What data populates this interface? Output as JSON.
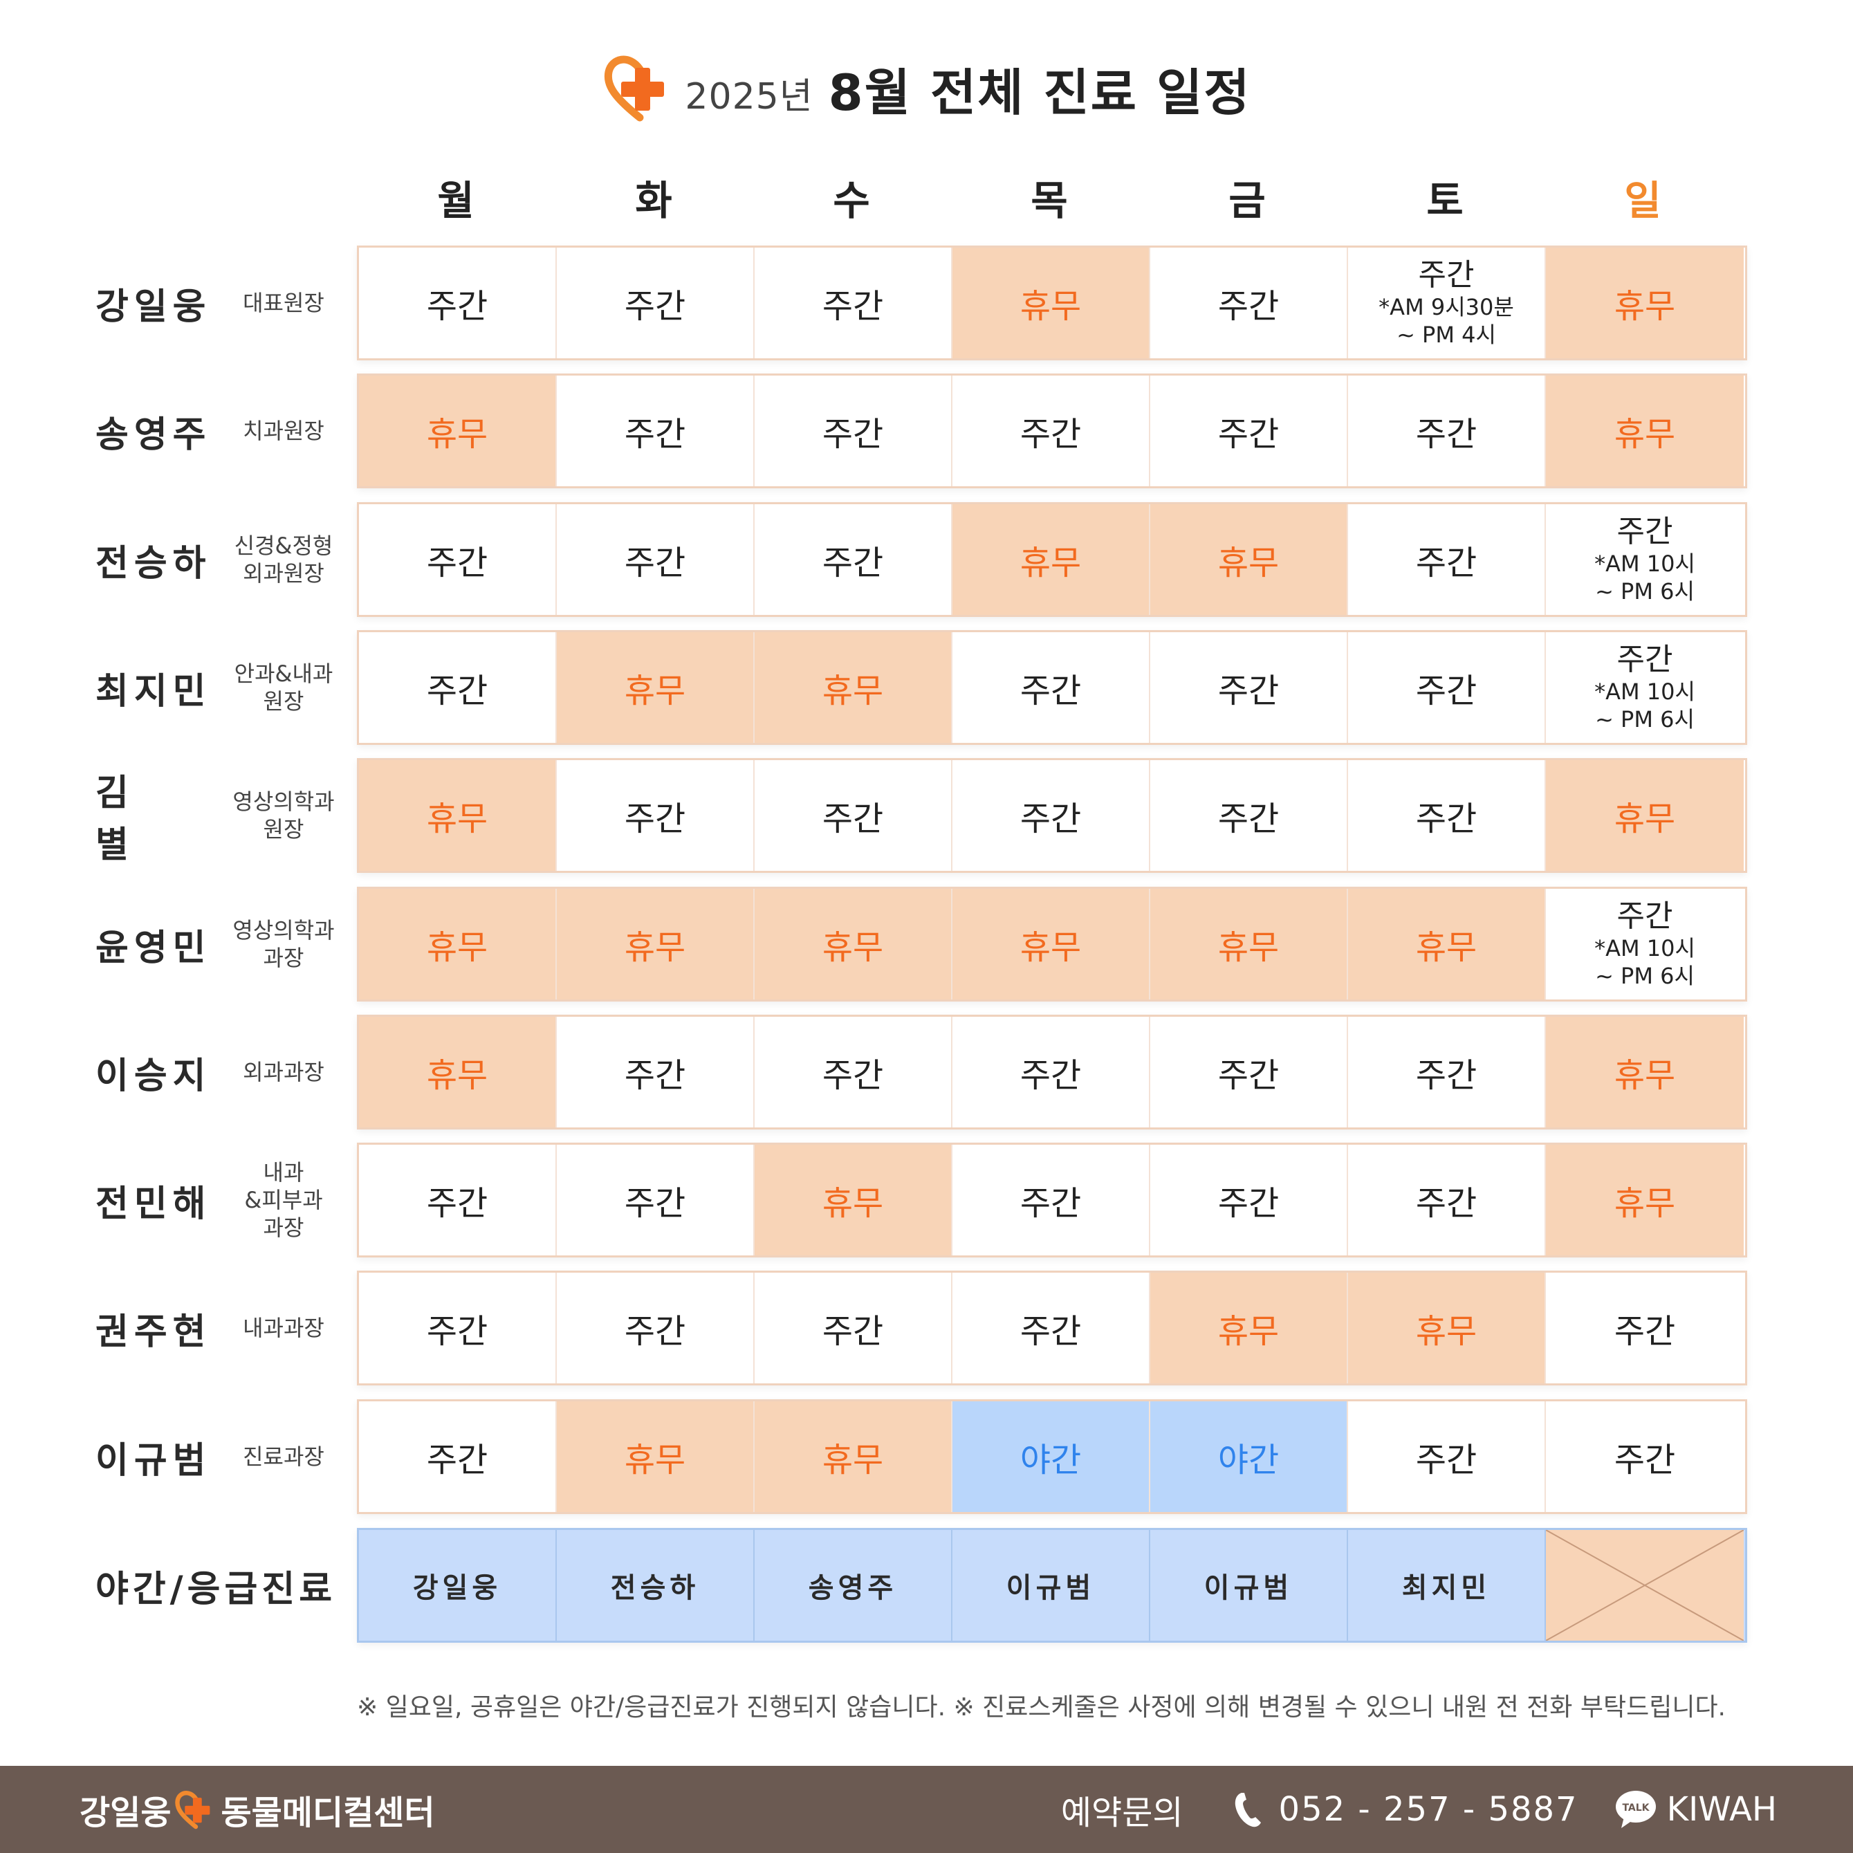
{
  "title": {
    "year": "2025년",
    "main": "8월 전체 진료 일정"
  },
  "days": [
    "월",
    "화",
    "수",
    "목",
    "금",
    "토",
    "일"
  ],
  "doctors": [
    {
      "name": "강일웅",
      "title": "대표원장",
      "cells": [
        {
          "status": "day",
          "text": "주간"
        },
        {
          "status": "day",
          "text": "주간"
        },
        {
          "status": "day",
          "text": "주간"
        },
        {
          "status": "off",
          "text": "휴무"
        },
        {
          "status": "day",
          "text": "주간"
        },
        {
          "status": "day",
          "text": "주간",
          "note1": "*AM 9시30분",
          "note2": "~ PM 4시"
        },
        {
          "status": "off",
          "text": "휴무"
        }
      ]
    },
    {
      "name": "송영주",
      "title": "치과원장",
      "cells": [
        {
          "status": "off",
          "text": "휴무"
        },
        {
          "status": "day",
          "text": "주간"
        },
        {
          "status": "day",
          "text": "주간"
        },
        {
          "status": "day",
          "text": "주간"
        },
        {
          "status": "day",
          "text": "주간"
        },
        {
          "status": "day",
          "text": "주간"
        },
        {
          "status": "off",
          "text": "휴무"
        }
      ]
    },
    {
      "name": "전승하",
      "title": "신경&정형\n외과원장",
      "cells": [
        {
          "status": "day",
          "text": "주간"
        },
        {
          "status": "day",
          "text": "주간"
        },
        {
          "status": "day",
          "text": "주간"
        },
        {
          "status": "off",
          "text": "휴무"
        },
        {
          "status": "off",
          "text": "휴무"
        },
        {
          "status": "day",
          "text": "주간"
        },
        {
          "status": "day",
          "text": "주간",
          "note1": "*AM 10시",
          "note2": "~ PM 6시"
        }
      ]
    },
    {
      "name": "최지민",
      "title": "안과&내과\n원장",
      "cells": [
        {
          "status": "day",
          "text": "주간"
        },
        {
          "status": "off",
          "text": "휴무"
        },
        {
          "status": "off",
          "text": "휴무"
        },
        {
          "status": "day",
          "text": "주간"
        },
        {
          "status": "day",
          "text": "주간"
        },
        {
          "status": "day",
          "text": "주간"
        },
        {
          "status": "day",
          "text": "주간",
          "note1": "*AM 10시",
          "note2": "~ PM 6시"
        }
      ]
    },
    {
      "name": "김별",
      "title": "영상의학과\n원장",
      "cells": [
        {
          "status": "off",
          "text": "휴무"
        },
        {
          "status": "day",
          "text": "주간"
        },
        {
          "status": "day",
          "text": "주간"
        },
        {
          "status": "day",
          "text": "주간"
        },
        {
          "status": "day",
          "text": "주간"
        },
        {
          "status": "day",
          "text": "주간"
        },
        {
          "status": "off",
          "text": "휴무"
        }
      ]
    },
    {
      "name": "윤영민",
      "title": "영상의학과\n과장",
      "cells": [
        {
          "status": "off",
          "text": "휴무"
        },
        {
          "status": "off",
          "text": "휴무"
        },
        {
          "status": "off",
          "text": "휴무"
        },
        {
          "status": "off",
          "text": "휴무"
        },
        {
          "status": "off",
          "text": "휴무"
        },
        {
          "status": "off",
          "text": "휴무"
        },
        {
          "status": "day",
          "text": "주간",
          "note1": "*AM 10시",
          "note2": "~ PM 6시"
        }
      ]
    },
    {
      "name": "이승지",
      "title": "외과과장",
      "cells": [
        {
          "status": "off",
          "text": "휴무"
        },
        {
          "status": "day",
          "text": "주간"
        },
        {
          "status": "day",
          "text": "주간"
        },
        {
          "status": "day",
          "text": "주간"
        },
        {
          "status": "day",
          "text": "주간"
        },
        {
          "status": "day",
          "text": "주간"
        },
        {
          "status": "off",
          "text": "휴무"
        }
      ]
    },
    {
      "name": "전민해",
      "title": "내과\n&피부과\n과장",
      "cells": [
        {
          "status": "day",
          "text": "주간"
        },
        {
          "status": "day",
          "text": "주간"
        },
        {
          "status": "off",
          "text": "휴무"
        },
        {
          "status": "day",
          "text": "주간"
        },
        {
          "status": "day",
          "text": "주간"
        },
        {
          "status": "day",
          "text": "주간"
        },
        {
          "status": "off",
          "text": "휴무"
        }
      ]
    },
    {
      "name": "권주현",
      "title": "내과과장",
      "cells": [
        {
          "status": "day",
          "text": "주간"
        },
        {
          "status": "day",
          "text": "주간"
        },
        {
          "status": "day",
          "text": "주간"
        },
        {
          "status": "day",
          "text": "주간"
        },
        {
          "status": "off",
          "text": "휴무"
        },
        {
          "status": "off",
          "text": "휴무"
        },
        {
          "status": "day",
          "text": "주간"
        }
      ]
    },
    {
      "name": "이규범",
      "title": "진료과장",
      "cells": [
        {
          "status": "day",
          "text": "주간"
        },
        {
          "status": "off",
          "text": "휴무"
        },
        {
          "status": "off",
          "text": "휴무"
        },
        {
          "status": "night",
          "text": "야간"
        },
        {
          "status": "night",
          "text": "야간"
        },
        {
          "status": "day",
          "text": "주간"
        },
        {
          "status": "day",
          "text": "주간"
        }
      ]
    }
  ],
  "emergency": {
    "label": "야간/응급진료",
    "cells": [
      "강일웅",
      "전승하",
      "송영주",
      "이규범",
      "이규범",
      "최지민"
    ],
    "sunday": "none"
  },
  "note": "※ 일요일, 공휴일은 야간/응급진료가 진행되지 않습니다.  ※ 진료스케줄은 사정에 의해 변경될 수 있으니 내원 전 전화 부탁드립니다.",
  "footer": {
    "brand_left": "강일웅",
    "brand_right": "동물메디컬센터",
    "contact_label": "예약문의",
    "phone": "052 - 257 - 5887",
    "talk_badge": "TALK",
    "kakao_id": "KIWAH"
  },
  "colors": {
    "off_bg": "#f8d4b7",
    "off_text": "#f26a1f",
    "night_bg": "#b9d6fb",
    "night_text": "#2f83ec",
    "accent": "#f28a2e",
    "footer_bg": "#6b5a52"
  }
}
